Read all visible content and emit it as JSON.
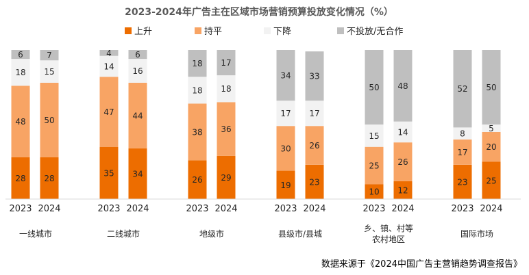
{
  "chart_data": {
    "type": "bar",
    "stacked": true,
    "title": "2023-2024年广告主在区域市场营销预算投放变化情况（%）",
    "source_note": "数据来源于《2024中国广告主营销趋势调查报告》",
    "legend_position": "top",
    "grid": false,
    "ylim": [
      0,
      100
    ],
    "groups": [
      {
        "name": "一线城市",
        "name_lines": [
          "一线城市"
        ]
      },
      {
        "name": "二线城市",
        "name_lines": [
          "二线城市"
        ]
      },
      {
        "name": "地级市",
        "name_lines": [
          "地级市"
        ]
      },
      {
        "name": "县级市/县城",
        "name_lines": [
          "县级市/县城"
        ]
      },
      {
        "name": "乡、镇、村等农村地区",
        "name_lines": [
          "乡、镇、村等",
          "农村地区"
        ]
      },
      {
        "name": "国际市场",
        "name_lines": [
          "国际市场"
        ]
      }
    ],
    "years": [
      "2023",
      "2024"
    ],
    "series": [
      {
        "name": "上升",
        "color": "#ED6D00",
        "values": [
          [
            28,
            28
          ],
          [
            35,
            34
          ],
          [
            26,
            29
          ],
          [
            19,
            23
          ],
          [
            10,
            12
          ],
          [
            23,
            25
          ]
        ]
      },
      {
        "name": "持平",
        "color": "#F8A464",
        "values": [
          [
            48,
            50
          ],
          [
            47,
            44
          ],
          [
            38,
            36
          ],
          [
            30,
            26
          ],
          [
            25,
            26
          ],
          [
            17,
            20
          ]
        ]
      },
      {
        "name": "下降",
        "color": "#F2F2F2",
        "values": [
          [
            18,
            15
          ],
          [
            14,
            16
          ],
          [
            18,
            18
          ],
          [
            17,
            17
          ],
          [
            15,
            14
          ],
          [
            8,
            5
          ]
        ]
      },
      {
        "name": "不投放/无合作",
        "color": "#BFBFBF",
        "values": [
          [
            6,
            7
          ],
          [
            4,
            6
          ],
          [
            18,
            17
          ],
          [
            34,
            33
          ],
          [
            50,
            48
          ],
          [
            52,
            50
          ]
        ]
      }
    ]
  }
}
